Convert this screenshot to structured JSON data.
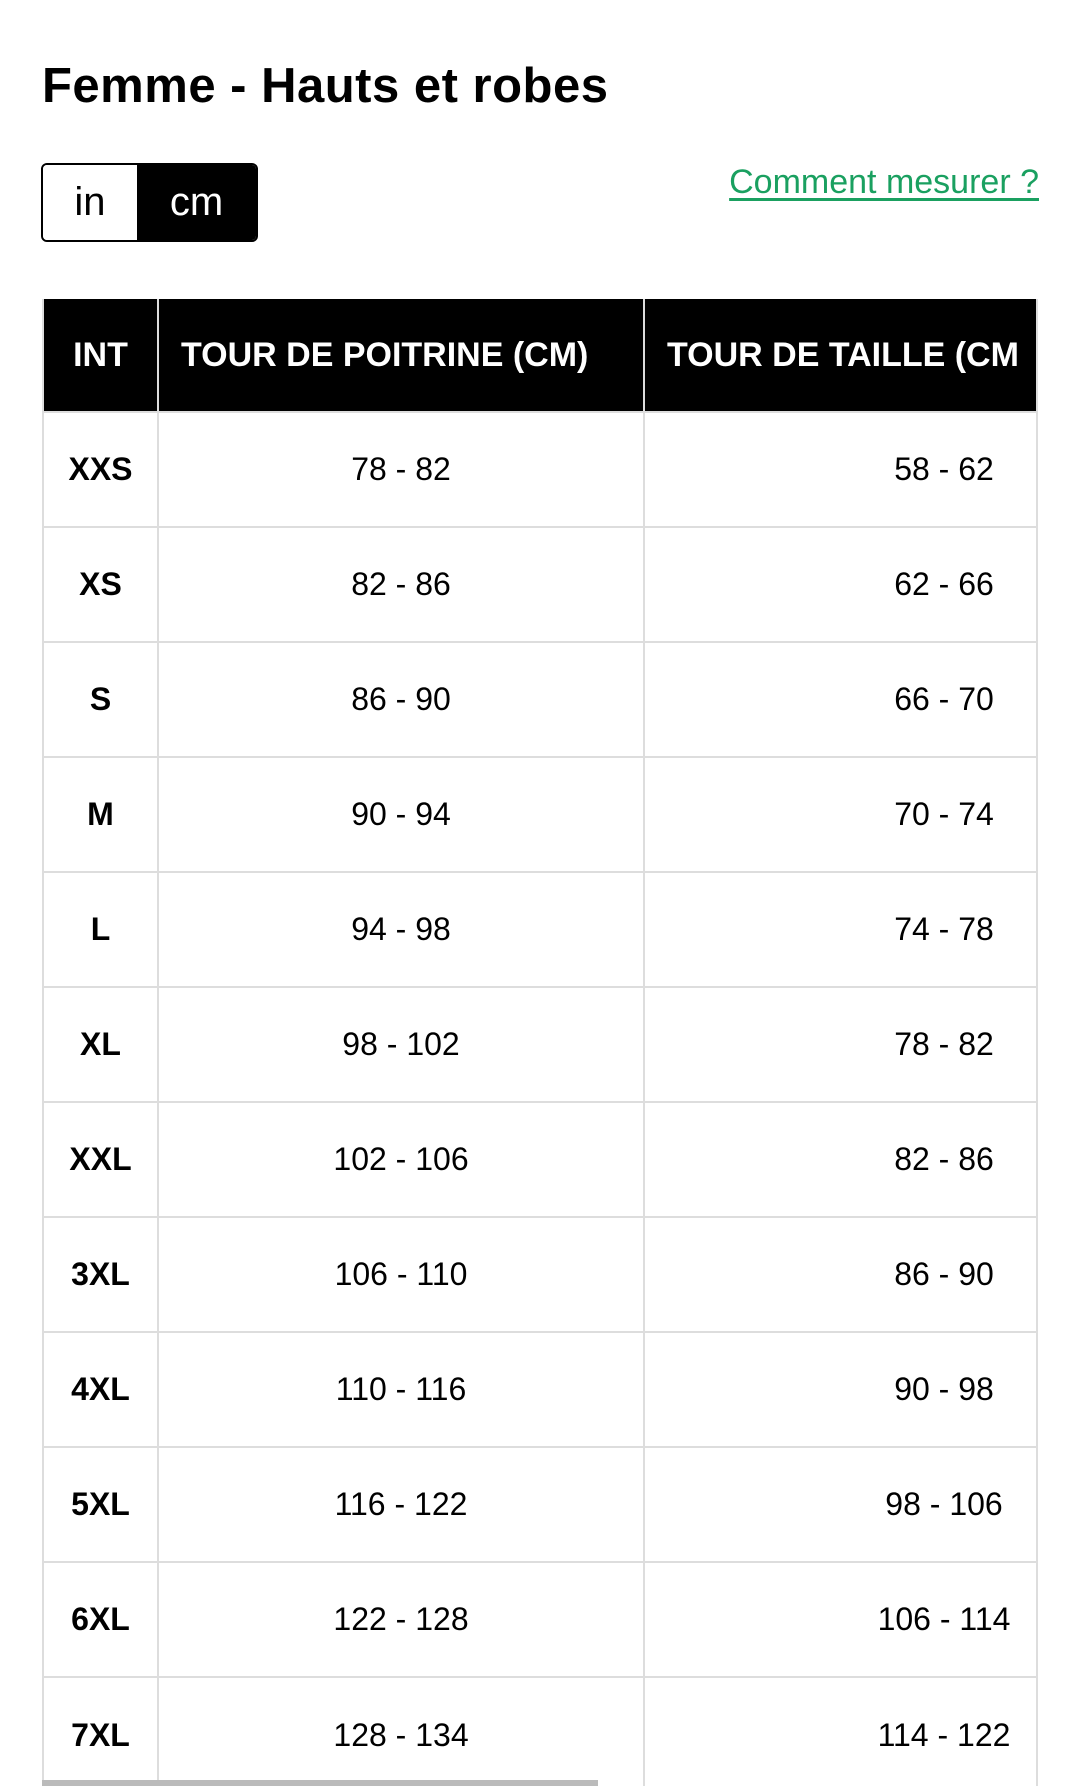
{
  "title": "Femme - Hauts et robes",
  "unit_toggle": {
    "options": [
      "in",
      "cm"
    ],
    "selected": "cm"
  },
  "how_to_measure_link": "Comment mesurer ?",
  "colors": {
    "link": "#1aa060",
    "header_bg": "#000000",
    "header_text": "#ffffff"
  },
  "table": {
    "headers": [
      "INT",
      "TOUR DE POITRINE (CM)",
      "TOUR DE TAILLE (CM"
    ],
    "rows": [
      [
        "XXS",
        "78 - 82",
        "58 - 62"
      ],
      [
        "XS",
        "82 - 86",
        "62 - 66"
      ],
      [
        "S",
        "86 - 90",
        "66 - 70"
      ],
      [
        "M",
        "90 - 94",
        "70 - 74"
      ],
      [
        "L",
        "94 - 98",
        "74 - 78"
      ],
      [
        "XL",
        "98 - 102",
        "78 - 82"
      ],
      [
        "XXL",
        "102 - 106",
        "82 - 86"
      ],
      [
        "3XL",
        "106 - 110",
        "86 - 90"
      ],
      [
        "4XL",
        "110 - 116",
        "90 - 98"
      ],
      [
        "5XL",
        "116 - 122",
        "98 - 106"
      ],
      [
        "6XL",
        "122 - 128",
        "106 - 114"
      ],
      [
        "7XL",
        "128 - 134",
        "114 - 122"
      ]
    ]
  }
}
